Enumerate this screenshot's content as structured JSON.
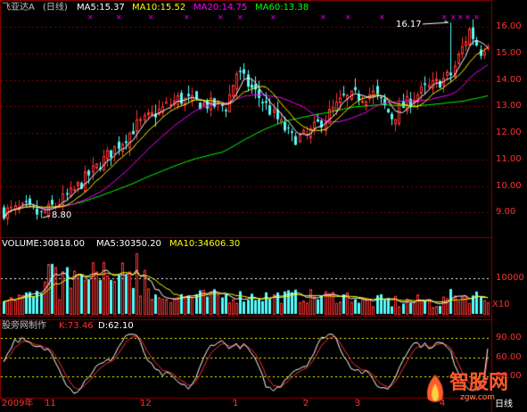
{
  "header": {
    "stock": "飞亚达A",
    "period": "(日线)",
    "ma5": "MA5:15.37",
    "ma10": "MA10:15.52",
    "ma20": "MA20:14.75",
    "ma60": "MA60:13.38"
  },
  "volume_header": {
    "label": "VOLUME:30818.00",
    "ma5": "MA5:30350.20",
    "ma10": "MA10:34606.30"
  },
  "kdj_header": {
    "label": "股旁网制作",
    "k": "K:73.46",
    "d": "D:62.10"
  },
  "price_annotations": {
    "high": "16.17",
    "low": "8.80"
  },
  "volume_unit": "X10",
  "date_axis_label": "日线",
  "watermark": {
    "cn": "智股网",
    "en": "zgw.com"
  },
  "colors": {
    "bg": "#000000",
    "grid": "#8b0000",
    "up": "#ff3232",
    "down": "#54fcfc",
    "ma5": "#ffffff",
    "ma10": "#ffff00",
    "ma20": "#ff00ff",
    "ma60": "#00ff00",
    "k": "#ffffff",
    "d": "#ff3030",
    "text": "#c0c0c0",
    "marker": "#ff00ff"
  },
  "chart_data": [
    {
      "type": "candlestick",
      "title": "飞亚达A (日线)",
      "y_ticks": [
        9,
        10,
        11,
        12,
        13,
        14,
        15,
        16
      ],
      "ylim": [
        8.2,
        16.55
      ],
      "x_ticks": [
        "2009年",
        "11",
        "12",
        "1",
        "2",
        "3",
        "4"
      ],
      "x_tick_index": [
        0,
        11,
        37,
        62,
        81,
        95,
        118
      ],
      "bars": 132,
      "key_points": [
        {
          "label": "low",
          "index": 10,
          "value": 8.8
        },
        {
          "label": "high",
          "index": 121,
          "value": 16.17
        }
      ],
      "close_anchors": [
        [
          0,
          9.05
        ],
        [
          6,
          9.15
        ],
        [
          10,
          8.9
        ],
        [
          18,
          9.7
        ],
        [
          27,
          11.0
        ],
        [
          36,
          12.3
        ],
        [
          47,
          13.3
        ],
        [
          54,
          13.1
        ],
        [
          60,
          13.0
        ],
        [
          63,
          14.3
        ],
        [
          70,
          13.2
        ],
        [
          78,
          11.8
        ],
        [
          82,
          11.9
        ],
        [
          92,
          13.3
        ],
        [
          100,
          13.5
        ],
        [
          105,
          12.6
        ],
        [
          111,
          13.4
        ],
        [
          121,
          14.2
        ],
        [
          126,
          15.9
        ],
        [
          129,
          15.1
        ],
        [
          131,
          15.5
        ]
      ],
      "ma_legend": [
        {
          "name": "MA5",
          "value": 15.37
        },
        {
          "name": "MA10",
          "value": 15.52
        },
        {
          "name": "MA20",
          "value": 14.75
        },
        {
          "name": "MA60",
          "value": 13.38
        }
      ]
    },
    {
      "type": "bar",
      "title": "VOLUME",
      "unit": "X10",
      "y_ticks": [
        10000
      ],
      "ylim": [
        0,
        18000
      ],
      "last_value": 30818.0,
      "ma5": 30350.2,
      "ma10": 34606.3
    },
    {
      "type": "line",
      "title": "KDJ",
      "y_ticks": [
        30,
        60,
        90
      ],
      "ylim": [
        0,
        100
      ],
      "series": [
        {
          "name": "K",
          "last": 73.46
        },
        {
          "name": "D",
          "last": 62.1
        }
      ]
    }
  ]
}
